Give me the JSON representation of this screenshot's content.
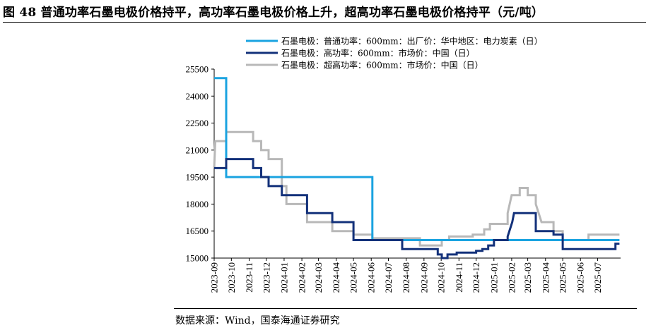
{
  "title": "图 48 普通功率石墨电极价格持平，高功率石墨电极价格上升，超高功率石墨电极价格持平（元/吨）",
  "source": "数据来源：Wind，国泰海通证券研究",
  "chart_data": {
    "type": "line",
    "title": "图 48 普通功率石墨电极价格持平，高功率石墨电极价格上升，超高功率石墨电极价格持平（元/吨）",
    "ylim": [
      15000,
      25500
    ],
    "yticks": [
      "25500",
      "24000",
      "22500",
      "21000",
      "19500",
      "18000",
      "16500",
      "15000"
    ],
    "xlim": [
      "2023-09",
      "2025-08"
    ],
    "xticks": [
      "2023-09",
      "2023-10",
      "2023-11",
      "2023-12",
      "2024-01",
      "2024-02",
      "2024-03",
      "2024-04",
      "2024-05",
      "2024-06",
      "2024-07",
      "2024-08",
      "2024-09",
      "2024-10",
      "2024-11",
      "2024-12",
      "2025-01",
      "2025-02",
      "2025-03",
      "2025-04",
      "2025-05",
      "2025-06",
      "2025-07"
    ],
    "grid": false,
    "legend_position": "top",
    "series": [
      {
        "name": "石墨电极：普通功率：600mm：出厂价：华中地区：电力炭素（日）",
        "color": "#1aa3e0",
        "points": [
          [
            "2023-09-01",
            25000
          ],
          [
            "2023-09-22",
            25000
          ],
          [
            "2023-09-22",
            19500
          ],
          [
            "2024-06-03",
            19500
          ],
          [
            "2024-06-03",
            16000
          ],
          [
            "2025-08-08",
            16000
          ]
        ]
      },
      {
        "name": "石墨电极：高功率：600mm：市场价：中国（日）",
        "color": "#13317a",
        "points": [
          [
            "2023-09-01",
            20000
          ],
          [
            "2023-09-22",
            20000
          ],
          [
            "2023-09-22",
            20500
          ],
          [
            "2023-11-08",
            20500
          ],
          [
            "2023-11-08",
            20000
          ],
          [
            "2023-11-22",
            20000
          ],
          [
            "2023-11-22",
            19500
          ],
          [
            "2023-12-05",
            19500
          ],
          [
            "2023-12-05",
            19000
          ],
          [
            "2023-12-28",
            19000
          ],
          [
            "2023-12-28",
            18500
          ],
          [
            "2024-02-10",
            18500
          ],
          [
            "2024-02-10",
            17500
          ],
          [
            "2024-03-25",
            17500
          ],
          [
            "2024-03-25",
            17000
          ],
          [
            "2024-05-01",
            17000
          ],
          [
            "2024-05-01",
            16000
          ],
          [
            "2024-07-25",
            16000
          ],
          [
            "2024-07-25",
            15500
          ],
          [
            "2024-09-25",
            15500
          ],
          [
            "2024-09-25",
            15200
          ],
          [
            "2024-10-02",
            15200
          ],
          [
            "2024-10-02",
            15000
          ],
          [
            "2024-10-12",
            15000
          ],
          [
            "2024-10-12",
            15200
          ],
          [
            "2024-10-28",
            15200
          ],
          [
            "2024-10-28",
            15300
          ],
          [
            "2024-12-01",
            15300
          ],
          [
            "2024-12-01",
            15400
          ],
          [
            "2024-12-12",
            15400
          ],
          [
            "2024-12-12",
            15500
          ],
          [
            "2024-12-22",
            15500
          ],
          [
            "2024-12-22",
            15700
          ],
          [
            "2025-01-01",
            15700
          ],
          [
            "2025-01-01",
            16000
          ],
          [
            "2025-01-25",
            16000
          ],
          [
            "2025-01-25",
            16200
          ],
          [
            "2025-02-02",
            17000
          ],
          [
            "2025-02-05",
            17500
          ],
          [
            "2025-03-15",
            17500
          ],
          [
            "2025-03-15",
            16500
          ],
          [
            "2025-04-15",
            16500
          ],
          [
            "2025-04-15",
            16300
          ],
          [
            "2025-05-01",
            16300
          ],
          [
            "2025-05-01",
            15500
          ],
          [
            "2025-08-01",
            15500
          ],
          [
            "2025-08-01",
            15800
          ],
          [
            "2025-08-08",
            15800
          ]
        ]
      },
      {
        "name": "石墨电极：超高功率：600mm：市场价：中国（日）",
        "color": "#b8b8b8",
        "points": [
          [
            "2023-09-01",
            20000
          ],
          [
            "2023-09-03",
            21500
          ],
          [
            "2023-09-22",
            21500
          ],
          [
            "2023-09-22",
            22000
          ],
          [
            "2023-11-08",
            22000
          ],
          [
            "2023-11-08",
            21500
          ],
          [
            "2023-11-22",
            21500
          ],
          [
            "2023-11-22",
            21000
          ],
          [
            "2023-12-05",
            21000
          ],
          [
            "2023-12-05",
            20500
          ],
          [
            "2023-12-28",
            20500
          ],
          [
            "2023-12-28",
            19000
          ],
          [
            "2024-01-05",
            19000
          ],
          [
            "2024-01-05",
            18000
          ],
          [
            "2024-02-10",
            18000
          ],
          [
            "2024-02-10",
            17000
          ],
          [
            "2024-03-25",
            17000
          ],
          [
            "2024-03-25",
            16500
          ],
          [
            "2024-05-01",
            16500
          ],
          [
            "2024-05-01",
            16300
          ],
          [
            "2024-06-03",
            16300
          ],
          [
            "2024-06-03",
            16100
          ],
          [
            "2024-08-25",
            16100
          ],
          [
            "2024-08-25",
            15700
          ],
          [
            "2024-10-02",
            15700
          ],
          [
            "2024-10-02",
            16000
          ],
          [
            "2024-10-15",
            16000
          ],
          [
            "2024-10-15",
            16200
          ],
          [
            "2024-11-25",
            16200
          ],
          [
            "2024-11-25",
            16300
          ],
          [
            "2024-12-15",
            16300
          ],
          [
            "2024-12-15",
            16600
          ],
          [
            "2024-12-25",
            16600
          ],
          [
            "2024-12-25",
            16900
          ],
          [
            "2025-01-25",
            16900
          ],
          [
            "2025-01-25",
            17500
          ],
          [
            "2025-02-01",
            18500
          ],
          [
            "2025-02-15",
            18500
          ],
          [
            "2025-02-15",
            18900
          ],
          [
            "2025-03-01",
            18900
          ],
          [
            "2025-03-01",
            18500
          ],
          [
            "2025-03-15",
            18500
          ],
          [
            "2025-03-15",
            18000
          ],
          [
            "2025-03-25",
            17000
          ],
          [
            "2025-04-15",
            17000
          ],
          [
            "2025-04-15",
            16500
          ],
          [
            "2025-05-01",
            16500
          ],
          [
            "2025-05-01",
            16000
          ],
          [
            "2025-06-15",
            16000
          ],
          [
            "2025-06-15",
            16300
          ],
          [
            "2025-08-08",
            16300
          ]
        ]
      }
    ]
  }
}
